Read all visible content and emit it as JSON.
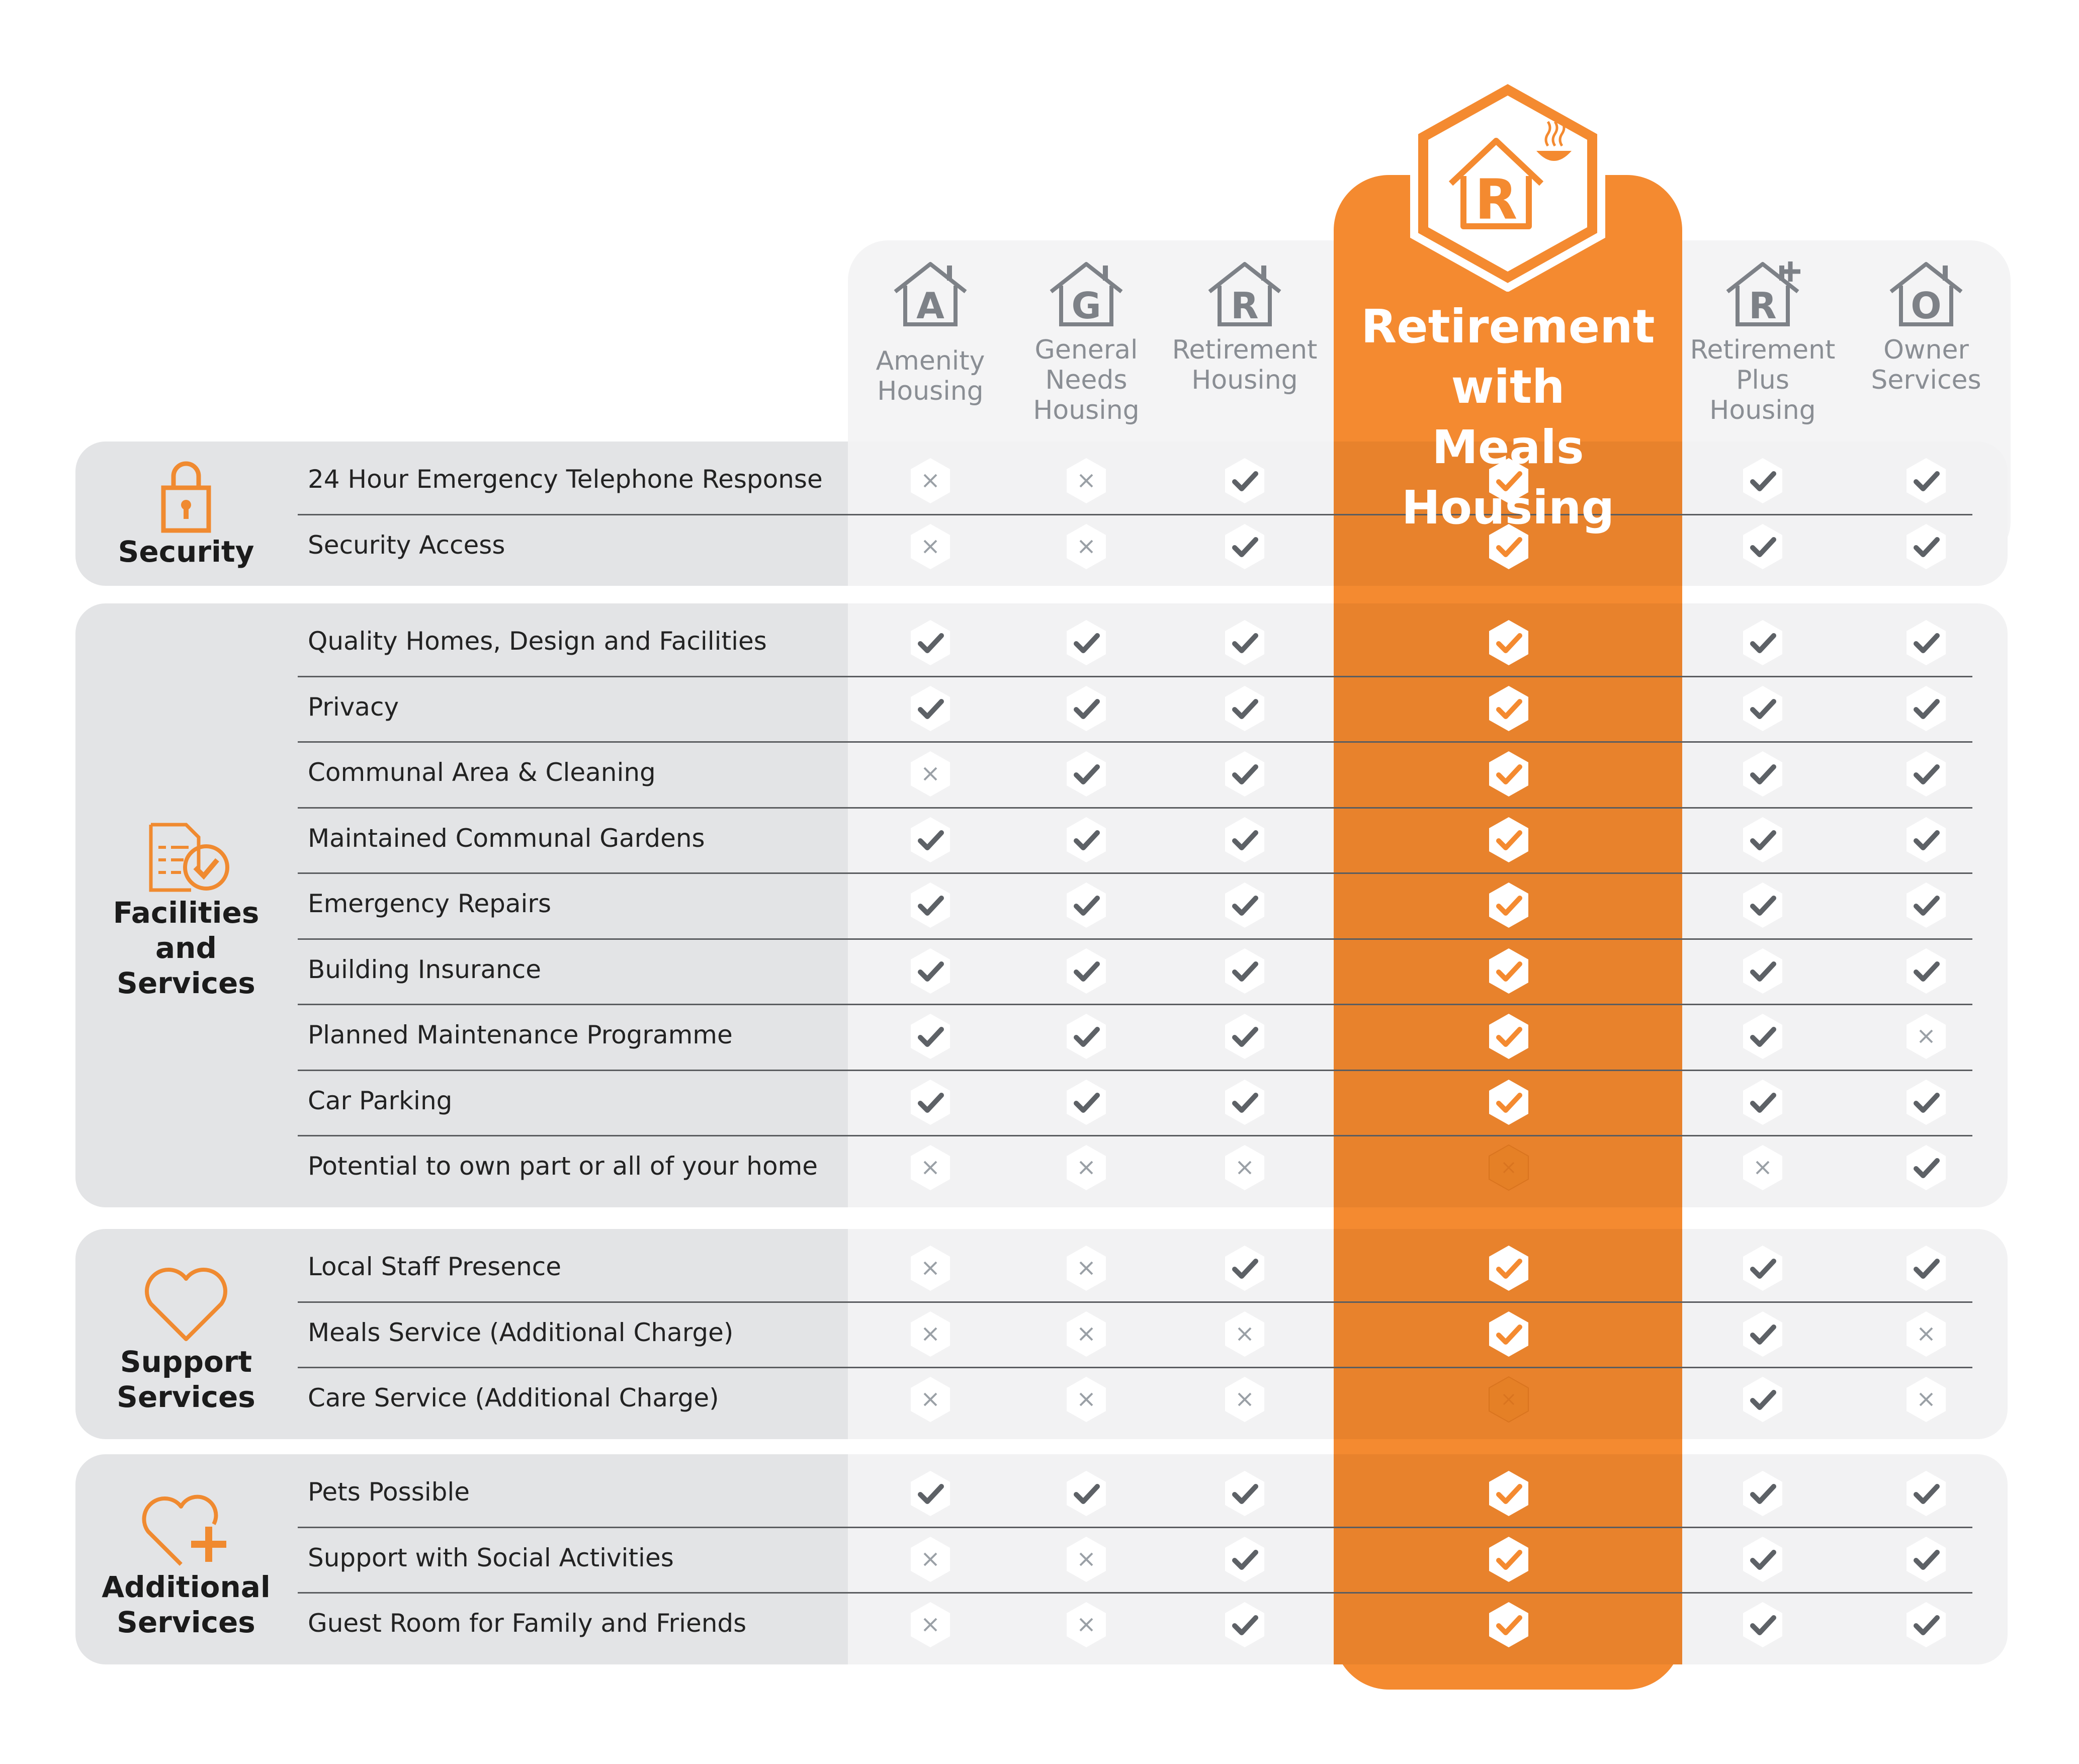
{
  "columns": [
    {
      "letter": "A",
      "label": "Amenity\nHousing"
    },
    {
      "letter": "G",
      "label": "General\nNeeds\nHousing"
    },
    {
      "letter": "R",
      "label": "Retirement\nHousing"
    },
    {
      "letter": "R",
      "label": "Retirement with\nMeals Housing",
      "highlight": true
    },
    {
      "letter": "R+",
      "label": "Retirement\nPlus\nHousing"
    },
    {
      "letter": "O",
      "label": "Owner\nServices"
    }
  ],
  "sections": [
    {
      "name": "Security",
      "icon": "padlock-icon",
      "rows": [
        {
          "label": "24 Hour Emergency Telephone Response",
          "values": [
            false,
            false,
            true,
            true,
            true,
            true
          ]
        },
        {
          "label": "Security Access",
          "values": [
            false,
            false,
            true,
            true,
            true,
            true
          ]
        }
      ]
    },
    {
      "name": "Facilities\nand\nServices",
      "icon": "document-check-icon",
      "rows": [
        {
          "label": "Quality Homes, Design and Facilities",
          "values": [
            true,
            true,
            true,
            true,
            true,
            true
          ]
        },
        {
          "label": "Privacy",
          "values": [
            true,
            true,
            true,
            true,
            true,
            true
          ]
        },
        {
          "label": "Communal Area & Cleaning",
          "values": [
            false,
            true,
            true,
            true,
            true,
            true
          ]
        },
        {
          "label": "Maintained Communal Gardens",
          "values": [
            true,
            true,
            true,
            true,
            true,
            true
          ]
        },
        {
          "label": "Emergency Repairs",
          "values": [
            true,
            true,
            true,
            true,
            true,
            true
          ]
        },
        {
          "label": "Building Insurance",
          "values": [
            true,
            true,
            true,
            true,
            true,
            true
          ]
        },
        {
          "label": "Planned Maintenance Programme",
          "values": [
            true,
            true,
            true,
            true,
            true,
            false
          ]
        },
        {
          "label": "Car Parking",
          "values": [
            true,
            true,
            true,
            true,
            true,
            true
          ]
        },
        {
          "label": "Potential to own part or all of your home",
          "values": [
            false,
            false,
            false,
            false,
            false,
            true
          ]
        }
      ]
    },
    {
      "name": "Support\nServices",
      "icon": "heart-icon",
      "rows": [
        {
          "label": "Local Staff Presence",
          "values": [
            false,
            false,
            true,
            true,
            true,
            true
          ]
        },
        {
          "label": "Meals Service (Additional Charge)",
          "values": [
            false,
            false,
            false,
            true,
            true,
            false
          ]
        },
        {
          "label": "Care Service (Additional Charge)",
          "values": [
            false,
            false,
            false,
            false,
            true,
            false
          ]
        }
      ]
    },
    {
      "name": "Additional\nServices",
      "icon": "heart-plus-icon",
      "rows": [
        {
          "label": "Pets Possible",
          "values": [
            true,
            true,
            true,
            true,
            true,
            true
          ]
        },
        {
          "label": "Support with Social Activities",
          "values": [
            false,
            false,
            true,
            true,
            true,
            true
          ]
        },
        {
          "label": "Guest Room for Family and Friends",
          "values": [
            false,
            false,
            true,
            true,
            true,
            true
          ]
        }
      ]
    }
  ],
  "colors": {
    "orange": "#f48a30",
    "orange_dark": "#e8822c",
    "grey_text": "#8a8e94",
    "check_grey": "#5d6166"
  }
}
